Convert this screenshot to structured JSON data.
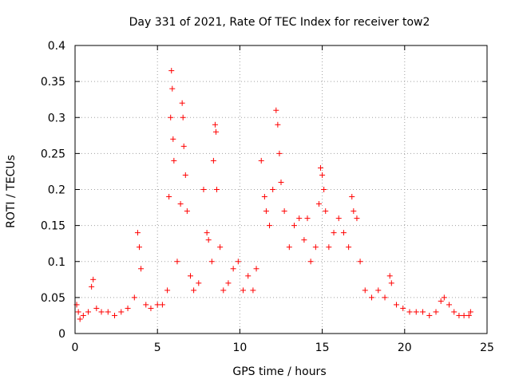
{
  "chart_data": {
    "type": "scatter",
    "title": "Day 331 of 2021, Rate Of TEC Index for receiver tow2",
    "xlabel": "GPS time / hours",
    "ylabel": "ROTI / TECUs",
    "xlim": [
      0,
      25
    ],
    "ylim": [
      0,
      0.4
    ],
    "x_ticks": [
      "0",
      "5",
      "10",
      "15",
      "20",
      "25"
    ],
    "y_ticks": [
      "0",
      "0.05",
      "0.1",
      "0.15",
      "0.2",
      "0.25",
      "0.3",
      "0.35",
      "0.4"
    ],
    "x_tick_values": [
      0,
      5,
      10,
      15,
      20,
      25
    ],
    "y_tick_values": [
      0,
      0.05,
      0.1,
      0.15,
      0.2,
      0.25,
      0.3,
      0.35,
      0.4
    ],
    "grid": true,
    "marker": "+",
    "color": "#ff0000",
    "series": [
      {
        "name": "ROTI",
        "x": [
          0.1,
          0.2,
          0.3,
          0.5,
          0.8,
          1.0,
          1.1,
          1.3,
          1.6,
          2.0,
          2.4,
          2.8,
          3.2,
          3.6,
          3.8,
          3.9,
          4.0,
          4.3,
          4.6,
          5.0,
          5.3,
          5.6,
          5.7,
          5.8,
          5.85,
          5.9,
          5.95,
          6.0,
          6.2,
          6.4,
          6.5,
          6.55,
          6.6,
          6.7,
          6.8,
          7.0,
          7.2,
          7.5,
          7.8,
          8.0,
          8.1,
          8.3,
          8.4,
          8.5,
          8.55,
          8.6,
          8.8,
          9.0,
          9.3,
          9.6,
          9.9,
          10.2,
          10.5,
          10.8,
          11.0,
          11.3,
          11.5,
          11.6,
          11.8,
          12.0,
          12.2,
          12.3,
          12.4,
          12.5,
          12.7,
          13.0,
          13.3,
          13.6,
          13.9,
          14.1,
          14.3,
          14.6,
          14.8,
          14.9,
          15.0,
          15.1,
          15.2,
          15.4,
          15.7,
          16.0,
          16.3,
          16.6,
          16.8,
          16.9,
          17.1,
          17.3,
          17.6,
          18.0,
          18.4,
          18.8,
          19.1,
          19.2,
          19.5,
          19.9,
          20.3,
          20.7,
          21.1,
          21.5,
          21.9,
          22.2,
          22.4,
          22.7,
          23.0,
          23.3,
          23.6,
          23.9,
          24.0
        ],
        "y": [
          0.04,
          0.03,
          0.02,
          0.025,
          0.03,
          0.065,
          0.075,
          0.035,
          0.03,
          0.03,
          0.025,
          0.03,
          0.035,
          0.05,
          0.14,
          0.12,
          0.09,
          0.04,
          0.035,
          0.04,
          0.04,
          0.06,
          0.19,
          0.3,
          0.365,
          0.34,
          0.27,
          0.24,
          0.1,
          0.18,
          0.32,
          0.3,
          0.26,
          0.22,
          0.17,
          0.08,
          0.06,
          0.07,
          0.2,
          0.14,
          0.13,
          0.1,
          0.24,
          0.29,
          0.28,
          0.2,
          0.12,
          0.06,
          0.07,
          0.09,
          0.1,
          0.06,
          0.08,
          0.06,
          0.09,
          0.24,
          0.19,
          0.17,
          0.15,
          0.2,
          0.31,
          0.29,
          0.25,
          0.21,
          0.17,
          0.12,
          0.15,
          0.16,
          0.13,
          0.16,
          0.1,
          0.12,
          0.18,
          0.23,
          0.22,
          0.2,
          0.17,
          0.12,
          0.14,
          0.16,
          0.14,
          0.12,
          0.19,
          0.17,
          0.16,
          0.1,
          0.06,
          0.05,
          0.06,
          0.05,
          0.08,
          0.07,
          0.04,
          0.035,
          0.03,
          0.03,
          0.03,
          0.025,
          0.03,
          0.045,
          0.05,
          0.04,
          0.03,
          0.025,
          0.025,
          0.025,
          0.03
        ]
      }
    ]
  }
}
